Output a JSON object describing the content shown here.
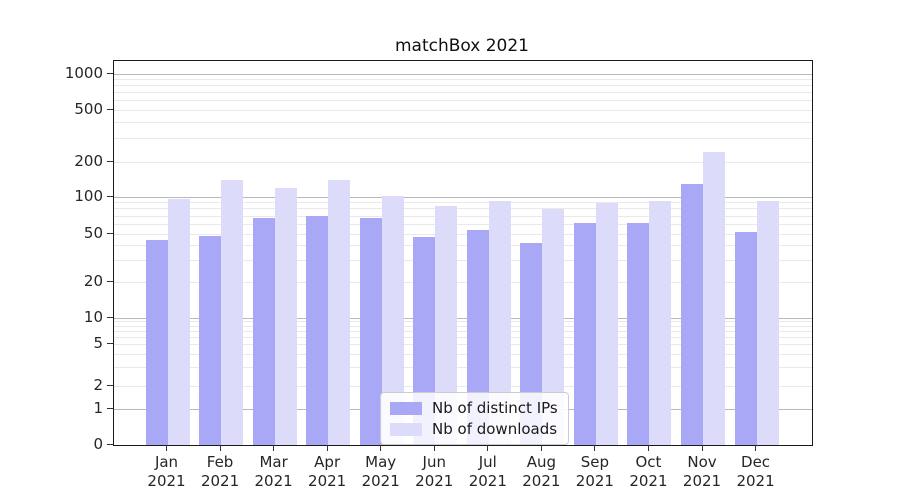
{
  "title": "matchBox 2021",
  "chart_data": {
    "type": "bar",
    "title": "matchBox 2021",
    "categories": [
      "Jan",
      "Feb",
      "Mar",
      "Apr",
      "May",
      "Jun",
      "Jul",
      "Aug",
      "Sep",
      "Oct",
      "Nov",
      "Dec"
    ],
    "category_year": "2021",
    "series": [
      {
        "name": "Nb of distinct IPs",
        "color": "#a8a8f6",
        "values": [
          45,
          48,
          67,
          70,
          67,
          47,
          54,
          42,
          61,
          62,
          130,
          52
        ]
      },
      {
        "name": "Nb of downloads",
        "color": "#dcdcfa",
        "values": [
          96,
          140,
          120,
          140,
          101,
          85,
          93,
          80,
          90,
          93,
          240,
          93
        ]
      }
    ],
    "xlabel": "",
    "ylabel": "",
    "y_scale": "symlog",
    "y_ticks": [
      0,
      1,
      2,
      5,
      10,
      20,
      50,
      100,
      200,
      500,
      1000
    ],
    "ylim": [
      0,
      1300
    ],
    "grid": true,
    "legend_position": "lower center"
  }
}
